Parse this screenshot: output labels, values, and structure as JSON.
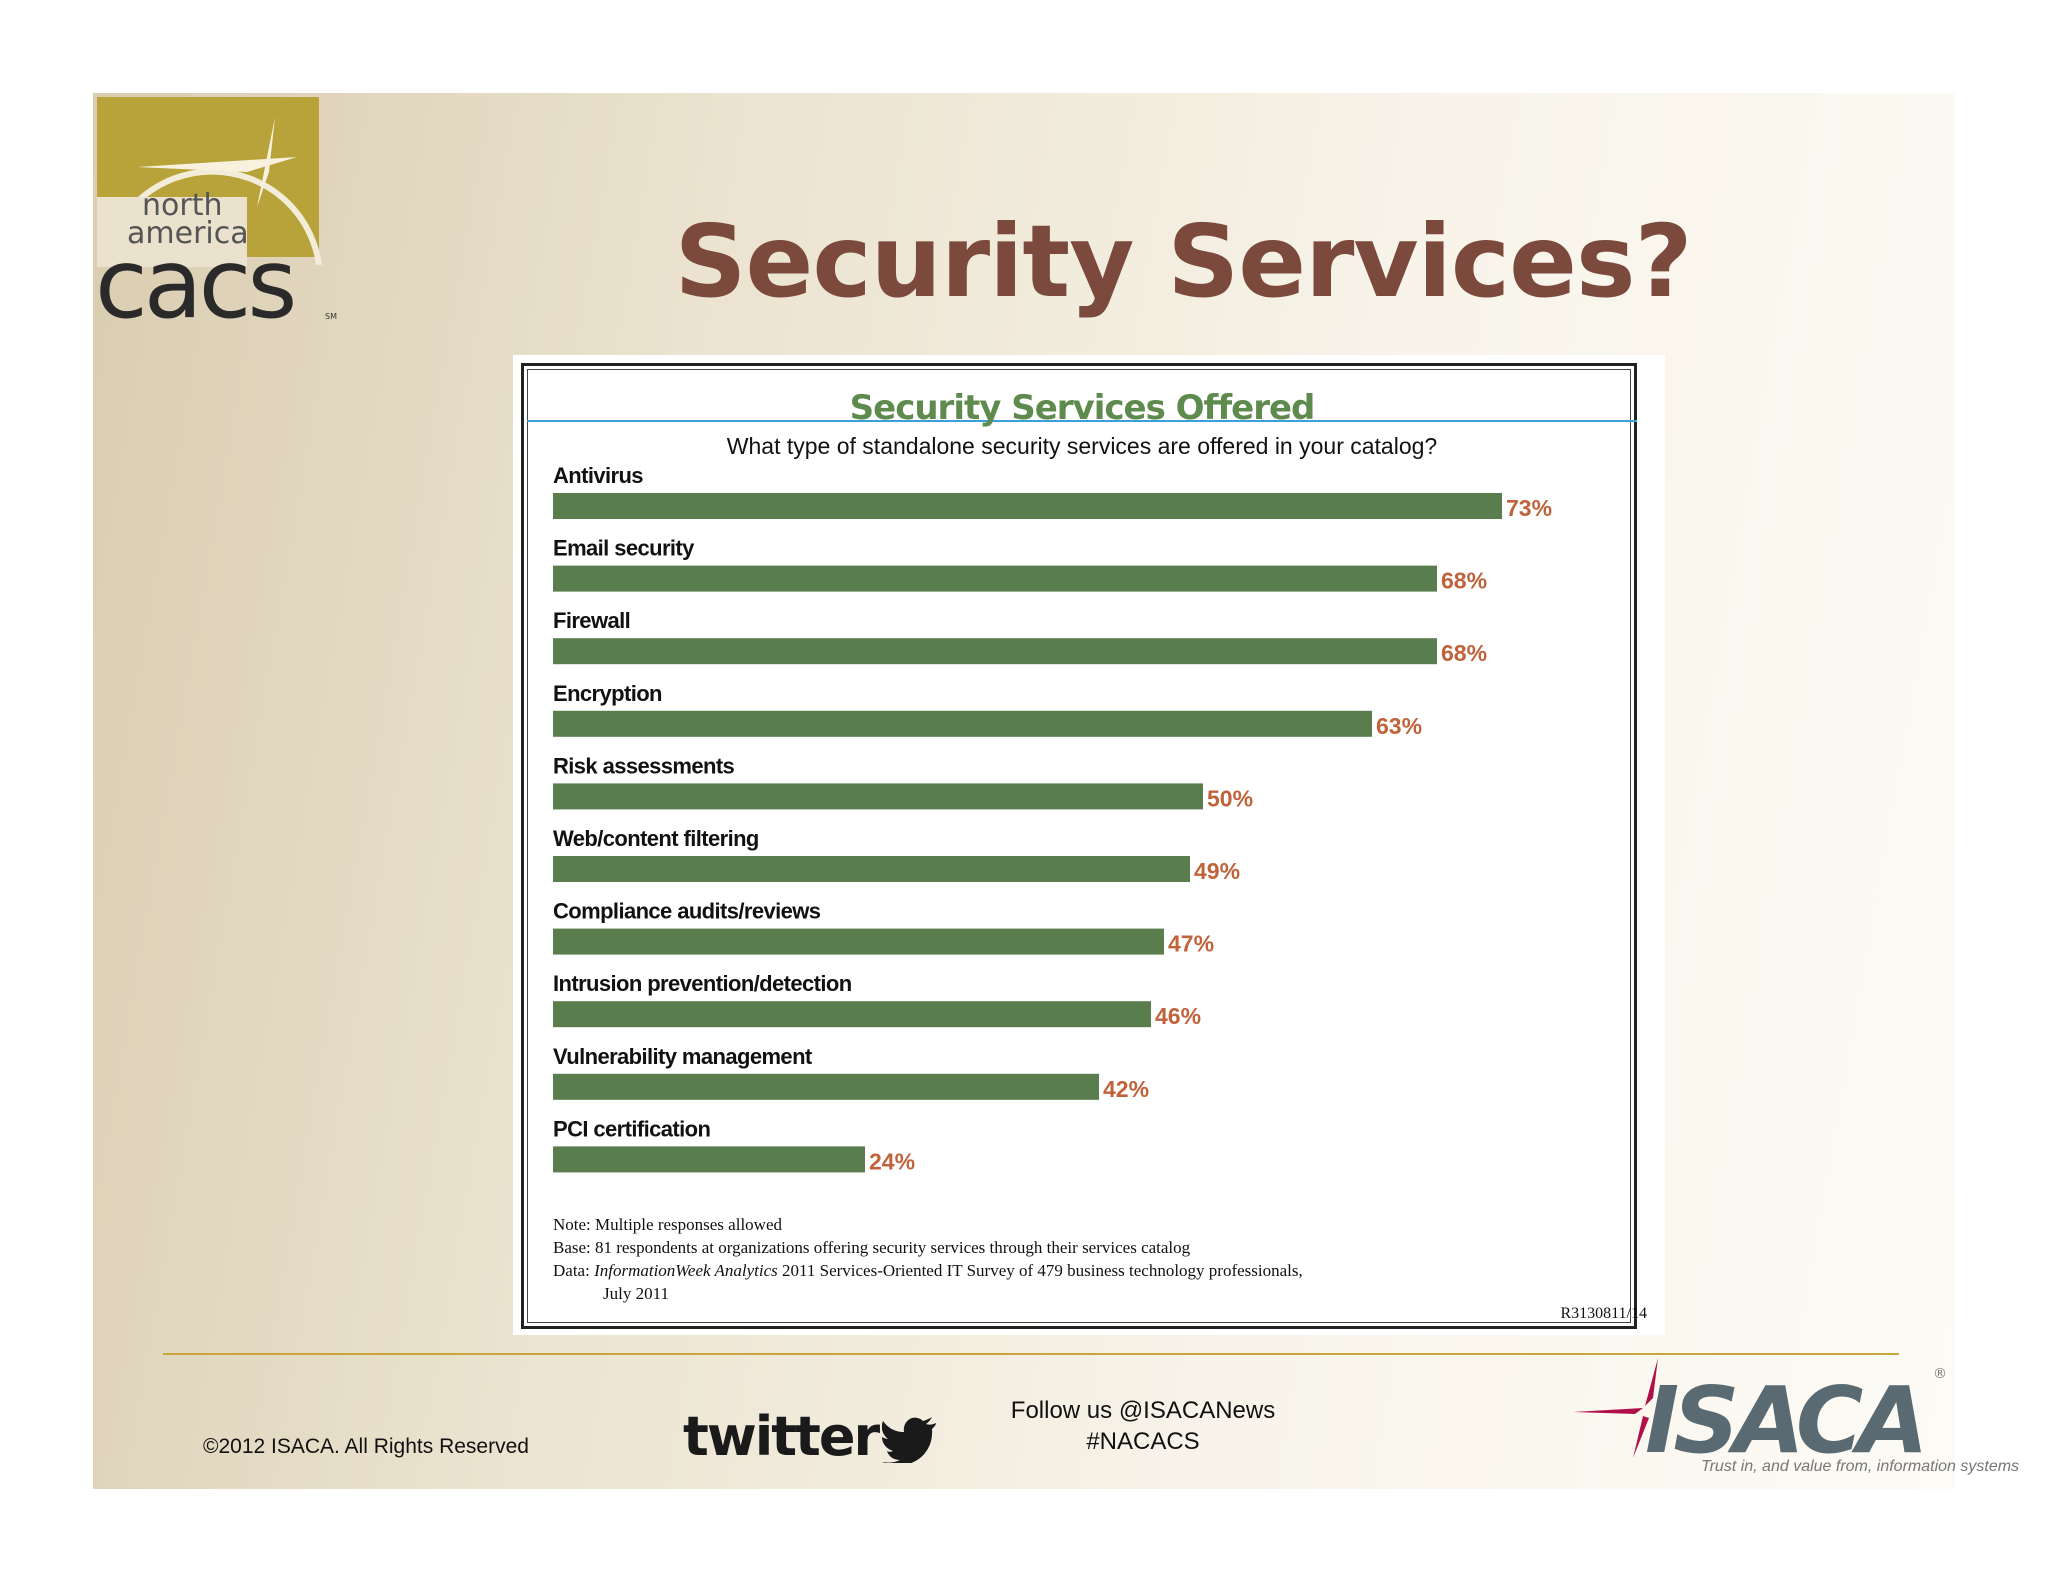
{
  "slide": {
    "title": "Security Services?",
    "logo": {
      "line1": "north",
      "line2": "america",
      "line3": "cacs",
      "mark": "SM"
    }
  },
  "chart_data": {
    "type": "bar",
    "orientation": "horizontal",
    "title": "Security Services Offered",
    "subtitle": "What type of standalone security services are offered in your catalog?",
    "categories": [
      "Antivirus",
      "Email security",
      "Firewall",
      "Encryption",
      "Risk assessments",
      "Web/content filtering",
      "Compliance audits/reviews",
      "Intrusion prevention/detection",
      "Vulnerability management",
      "PCI certification"
    ],
    "values": [
      73,
      68,
      68,
      63,
      50,
      49,
      47,
      46,
      42,
      24
    ],
    "value_labels": [
      "73%",
      "68%",
      "68%",
      "63%",
      "50%",
      "49%",
      "47%",
      "46%",
      "42%",
      "24%"
    ],
    "unit": "%",
    "xlim": [
      0,
      100
    ],
    "grid": false,
    "bar_color": "#5a7d4e",
    "label_color": "#c0633a",
    "title_color": "#5e8a4e"
  },
  "notes": {
    "note": "Note: Multiple responses allowed",
    "base": "Base: 81 respondents at organizations offering security services through their services catalog",
    "data_prefix": "Data: ",
    "data_source": "InformationWeek Analytics",
    "data_rest": " 2011 Services-Oriented IT Survey of 479 business technology professionals,",
    "data_line2": "July 2011",
    "report_id": "R3130811/14"
  },
  "footer": {
    "copyright": "©2012 ISACA. All Rights Reserved",
    "twitter_wordmark": "twitter",
    "follow_line1": "Follow us @ISACANews",
    "follow_line2": "#NACACS",
    "isaca_wordmark": "ISACA",
    "isaca_tagline": "Trust in, and value from, information systems",
    "registered": "®"
  }
}
